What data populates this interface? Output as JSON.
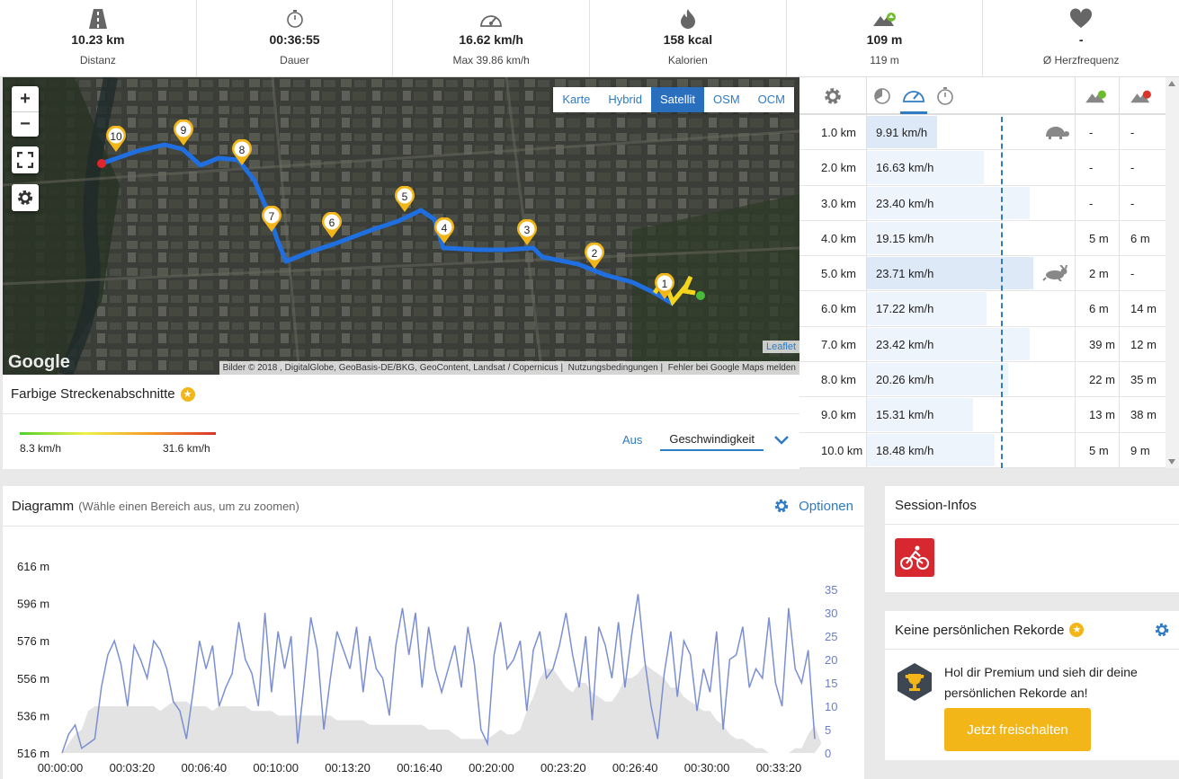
{
  "stats": [
    {
      "icon": "road-icon",
      "value": "10.23 km",
      "sub": "Distanz"
    },
    {
      "icon": "stopwatch-icon",
      "value": "00:36:55",
      "sub": "Dauer"
    },
    {
      "icon": "speedometer-icon",
      "value": "16.62 km/h",
      "sub": "Max 39.86 km/h"
    },
    {
      "icon": "flame-icon",
      "value": "158 kcal",
      "sub": "Kalorien"
    },
    {
      "icon": "elevation-up-icon",
      "value": "109 m",
      "sub": "119 m"
    },
    {
      "icon": "heart-icon",
      "value": "-",
      "sub": "Ø Herzfrequenz"
    }
  ],
  "map": {
    "zoom_in": "+",
    "zoom_out": "−",
    "layers": [
      "Karte",
      "Hybrid",
      "Satellit",
      "OSM",
      "OCM"
    ],
    "active_layer": "Satellit",
    "leaflet": "Leaflet",
    "google": "Google",
    "attribution": [
      "Bilder © 2018 , DigitalGlobe, GeoBasis-DE/BKG, GeoContent, Landsat / Copernicus",
      "Nutzungsbedingungen",
      "Fehler bei Google Maps melden"
    ],
    "markers": [
      "1",
      "2",
      "3",
      "4",
      "5",
      "6",
      "7",
      "8",
      "9",
      "10"
    ]
  },
  "segments": {
    "title": "Farbige Streckenabschnitte",
    "min": "8.3 km/h",
    "max": "31.6 km/h",
    "off": "Aus",
    "mode": "Geschwindigkeit"
  },
  "splits": {
    "rows": [
      {
        "km": "1.0 km",
        "speed": "9.91 km/h",
        "up": "-",
        "down": "-",
        "pct": 0.42,
        "badge": "turtle"
      },
      {
        "km": "2.0 km",
        "speed": "16.63 km/h",
        "up": "-",
        "down": "-",
        "pct": 0.7,
        "badge": ""
      },
      {
        "km": "3.0 km",
        "speed": "23.40 km/h",
        "up": "-",
        "down": "-",
        "pct": 0.98,
        "badge": ""
      },
      {
        "km": "4.0 km",
        "speed": "19.15 km/h",
        "up": "5 m",
        "down": "6 m",
        "pct": 0.8,
        "badge": ""
      },
      {
        "km": "5.0 km",
        "speed": "23.71 km/h",
        "up": "2 m",
        "down": "-",
        "pct": 1.0,
        "badge": "rabbit"
      },
      {
        "km": "6.0 km",
        "speed": "17.22 km/h",
        "up": "6 m",
        "down": "14 m",
        "pct": 0.72,
        "badge": ""
      },
      {
        "km": "7.0 km",
        "speed": "23.42 km/h",
        "up": "39 m",
        "down": "12 m",
        "pct": 0.98,
        "badge": ""
      },
      {
        "km": "8.0 km",
        "speed": "20.26 km/h",
        "up": "22 m",
        "down": "35 m",
        "pct": 0.85,
        "badge": ""
      },
      {
        "km": "9.0 km",
        "speed": "15.31 km/h",
        "up": "13 m",
        "down": "38 m",
        "pct": 0.64,
        "badge": ""
      },
      {
        "km": "10.0 km",
        "speed": "18.48 km/h",
        "up": "5 m",
        "down": "9 m",
        "pct": 0.77,
        "badge": ""
      }
    ]
  },
  "diagram": {
    "title": "Diagramm",
    "hint": "(Wähle einen Bereich aus, um zu zoomen)",
    "options": "Optionen"
  },
  "chart_data": {
    "type": "area",
    "y_left_ticks": [
      "616 m",
      "596 m",
      "576 m",
      "556 m",
      "536 m",
      "516 m"
    ],
    "y_right_ticks": [
      "35",
      "30",
      "25",
      "20",
      "15",
      "10",
      "5",
      "0"
    ],
    "x_ticks": [
      "00:00:00",
      "00:03:20",
      "00:06:40",
      "00:10:00",
      "00:13:20",
      "00:16:40",
      "00:20:00",
      "00:23:20",
      "00:26:40",
      "00:30:00",
      "00:33:20"
    ],
    "ylim_left": [
      516,
      616
    ],
    "ylim_right": [
      0,
      35
    ],
    "series": [
      {
        "color": "#7b8fd1",
        "values": [
          0,
          4,
          6,
          1,
          2,
          3,
          14,
          21,
          24,
          19,
          10,
          23,
          20,
          16,
          24,
          22,
          18,
          11,
          9,
          3,
          13,
          24,
          18,
          23,
          10,
          14,
          17,
          28,
          20,
          17,
          10,
          30,
          13,
          26,
          18,
          25,
          2,
          15,
          29,
          22,
          5,
          16,
          26,
          22,
          18,
          27,
          13,
          25,
          18,
          16,
          8,
          23,
          31,
          21,
          30,
          14,
          27,
          18,
          13,
          18,
          23,
          14,
          27,
          19,
          5,
          2,
          21,
          28,
          18,
          20,
          24,
          9,
          22,
          26,
          16,
          18,
          23,
          30,
          21,
          14,
          25,
          7,
          27,
          23,
          16,
          28,
          14,
          25,
          34,
          20,
          10,
          3,
          17,
          26,
          12,
          24,
          21,
          9,
          18,
          13,
          26,
          5,
          20,
          21,
          27,
          14,
          18,
          16,
          29,
          15,
          10,
          31,
          18,
          15,
          22,
          3
        ]
      },
      {
        "color": "#e3e3e3",
        "values": [
          0,
          2,
          4,
          5,
          9,
          10,
          10,
          10,
          10,
          10,
          10,
          10,
          10,
          10,
          10,
          9,
          10,
          11,
          11,
          11,
          10,
          10,
          10,
          9,
          10,
          10,
          10,
          10,
          10,
          9,
          9,
          9,
          9,
          8,
          8,
          8,
          8,
          8,
          8,
          8,
          8,
          8,
          7,
          7,
          7,
          7,
          7,
          6,
          6,
          6,
          6,
          6,
          6,
          6,
          6,
          6,
          5,
          5,
          5,
          5,
          4,
          3,
          3,
          3,
          3,
          3,
          4,
          5,
          4,
          4,
          5,
          9,
          12,
          16,
          18,
          18,
          16,
          14,
          13,
          15,
          15,
          13,
          12,
          11,
          11,
          13,
          16,
          16,
          17,
          19,
          18,
          17,
          16,
          14,
          14,
          12,
          11,
          10,
          9,
          9,
          7,
          6,
          4,
          3,
          3,
          2,
          1,
          1,
          0,
          0,
          0,
          0,
          1,
          1,
          4,
          6,
          2
        ]
      }
    ]
  },
  "session": {
    "title": "Session-Infos",
    "sport": "cycling-icon"
  },
  "records": {
    "title": "Keine persönlichen Rekorde",
    "text": "Hol dir Premium und sieh dir deine persönlichen Rekorde an!",
    "button": "Jetzt freischalten"
  }
}
